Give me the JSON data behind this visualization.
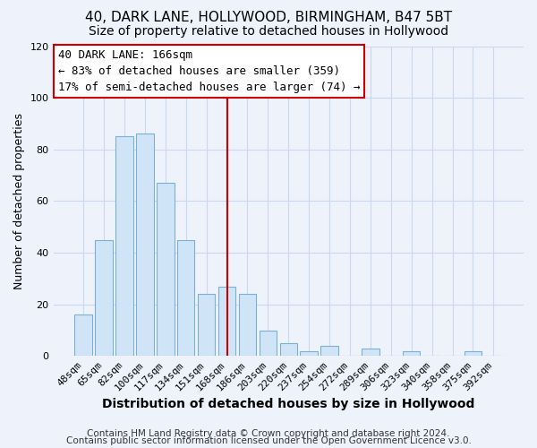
{
  "title": "40, DARK LANE, HOLLYWOOD, BIRMINGHAM, B47 5BT",
  "subtitle": "Size of property relative to detached houses in Hollywood",
  "xlabel": "Distribution of detached houses by size in Hollywood",
  "ylabel": "Number of detached properties",
  "bar_labels": [
    "48sqm",
    "65sqm",
    "82sqm",
    "100sqm",
    "117sqm",
    "134sqm",
    "151sqm",
    "168sqm",
    "186sqm",
    "203sqm",
    "220sqm",
    "237sqm",
    "254sqm",
    "272sqm",
    "289sqm",
    "306sqm",
    "323sqm",
    "340sqm",
    "358sqm",
    "375sqm",
    "392sqm"
  ],
  "bar_values": [
    16,
    45,
    85,
    86,
    67,
    45,
    24,
    27,
    24,
    10,
    5,
    2,
    4,
    0,
    3,
    0,
    2,
    0,
    0,
    2,
    0
  ],
  "bar_color": "#d0e4f7",
  "bar_edge_color": "#7ab0d4",
  "reference_line_index": 7,
  "reference_line_color": "#cc0000",
  "ylim": [
    0,
    120
  ],
  "yticks": [
    0,
    20,
    40,
    60,
    80,
    100,
    120
  ],
  "annotation_title": "40 DARK LANE: 166sqm",
  "annotation_line1": "← 83% of detached houses are smaller (359)",
  "annotation_line2": "17% of semi-detached houses are larger (74) →",
  "annotation_box_facecolor": "#ffffff",
  "annotation_box_edgecolor": "#cc0000",
  "footnote1": "Contains HM Land Registry data © Crown copyright and database right 2024.",
  "footnote2": "Contains public sector information licensed under the Open Government Licence v3.0.",
  "background_color": "#eef2fb",
  "grid_color": "#c8d8ef",
  "title_fontsize": 11,
  "subtitle_fontsize": 10,
  "xlabel_fontsize": 10,
  "ylabel_fontsize": 9,
  "tick_fontsize": 8,
  "annotation_fontsize": 9,
  "footnote_fontsize": 7.5
}
